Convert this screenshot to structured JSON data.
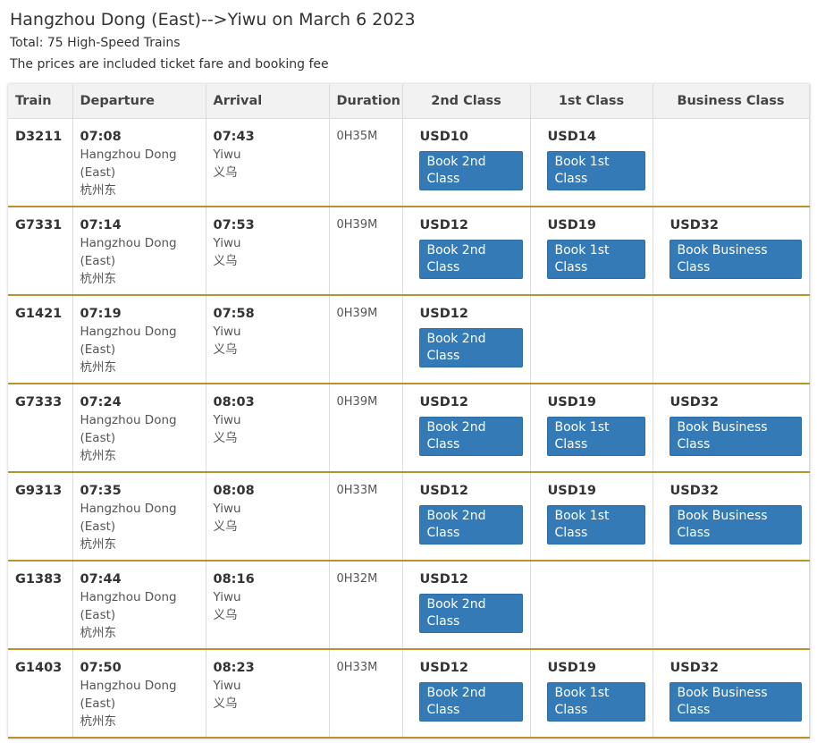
{
  "header": {
    "title": "Hangzhou Dong (East)-->Yiwu on March 6 2023",
    "total": "Total: 75 High-Speed Trains",
    "note": "The prices are included ticket fare and booking fee"
  },
  "table": {
    "columns": [
      "Train",
      "Departure",
      "Arrival",
      "Duration",
      "2nd Class",
      "1st Class",
      "Business Class"
    ],
    "rows": [
      {
        "train": "D3211",
        "dep_time": "07:08",
        "dep_station": "Hangzhou Dong (East)",
        "dep_cn": "杭州东",
        "arr_time": "07:43",
        "arr_station": "Yiwu",
        "arr_cn": "义乌",
        "duration": "0H35M",
        "classes": [
          {
            "price": "USD10",
            "button": "Book 2nd Class"
          },
          {
            "price": "USD14",
            "button": "Book 1st Class"
          },
          null
        ]
      },
      {
        "train": "G7331",
        "dep_time": "07:14",
        "dep_station": "Hangzhou Dong (East)",
        "dep_cn": "杭州东",
        "arr_time": "07:53",
        "arr_station": "Yiwu",
        "arr_cn": "义乌",
        "duration": "0H39M",
        "classes": [
          {
            "price": "USD12",
            "button": "Book 2nd Class"
          },
          {
            "price": "USD19",
            "button": "Book 1st Class"
          },
          {
            "price": "USD32",
            "button": "Book Business Class"
          }
        ]
      },
      {
        "train": "G1421",
        "dep_time": "07:19",
        "dep_station": "Hangzhou Dong (East)",
        "dep_cn": "杭州东",
        "arr_time": "07:58",
        "arr_station": "Yiwu",
        "arr_cn": "义乌",
        "duration": "0H39M",
        "classes": [
          {
            "price": "USD12",
            "button": "Book 2nd Class"
          },
          null,
          null
        ]
      },
      {
        "train": "G7333",
        "dep_time": "07:24",
        "dep_station": "Hangzhou Dong (East)",
        "dep_cn": "杭州东",
        "arr_time": "08:03",
        "arr_station": "Yiwu",
        "arr_cn": "义乌",
        "duration": "0H39M",
        "classes": [
          {
            "price": "USD12",
            "button": "Book 2nd Class"
          },
          {
            "price": "USD19",
            "button": "Book 1st Class"
          },
          {
            "price": "USD32",
            "button": "Book Business Class"
          }
        ]
      },
      {
        "train": "G9313",
        "dep_time": "07:35",
        "dep_station": "Hangzhou Dong (East)",
        "dep_cn": "杭州东",
        "arr_time": "08:08",
        "arr_station": "Yiwu",
        "arr_cn": "义乌",
        "duration": "0H33M",
        "classes": [
          {
            "price": "USD12",
            "button": "Book 2nd Class"
          },
          {
            "price": "USD19",
            "button": "Book 1st Class"
          },
          {
            "price": "USD32",
            "button": "Book Business Class"
          }
        ]
      },
      {
        "train": "G1383",
        "dep_time": "07:44",
        "dep_station": "Hangzhou Dong (East)",
        "dep_cn": "杭州东",
        "arr_time": "08:16",
        "arr_station": "Yiwu",
        "arr_cn": "义乌",
        "duration": "0H32M",
        "classes": [
          {
            "price": "USD12",
            "button": "Book 2nd Class"
          },
          null,
          null
        ]
      },
      {
        "train": "G1403",
        "dep_time": "07:50",
        "dep_station": "Hangzhou Dong (East)",
        "dep_cn": "杭州东",
        "arr_time": "08:23",
        "arr_station": "Yiwu",
        "arr_cn": "义乌",
        "duration": "0H33M",
        "classes": [
          {
            "price": "USD12",
            "button": "Book 2nd Class"
          },
          {
            "price": "USD19",
            "button": "Book 1st Class"
          },
          {
            "price": "USD32",
            "button": "Book Business Class"
          }
        ]
      }
    ]
  }
}
